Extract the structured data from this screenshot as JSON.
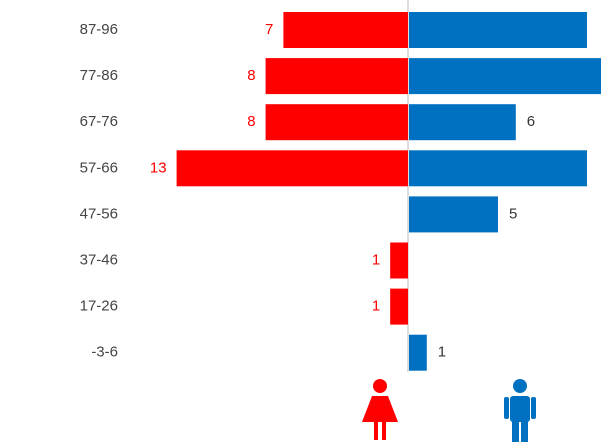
{
  "chart_data": {
    "type": "pyramid",
    "categories": [
      "87-96",
      "77-86",
      "67-76",
      "57-66",
      "47-56",
      "37-46",
      "17-26",
      "-3-6"
    ],
    "series": [
      {
        "color": "#ff0000",
        "label_color": "#ff0000",
        "side": "left",
        "values": [
          7,
          8,
          8,
          13,
          null,
          1,
          1,
          null
        ]
      },
      {
        "color": "#0070c0",
        "label_color": "#333333",
        "side": "right",
        "values": [
          10,
          11,
          6,
          10,
          5,
          null,
          null,
          1
        ]
      }
    ]
  }
}
